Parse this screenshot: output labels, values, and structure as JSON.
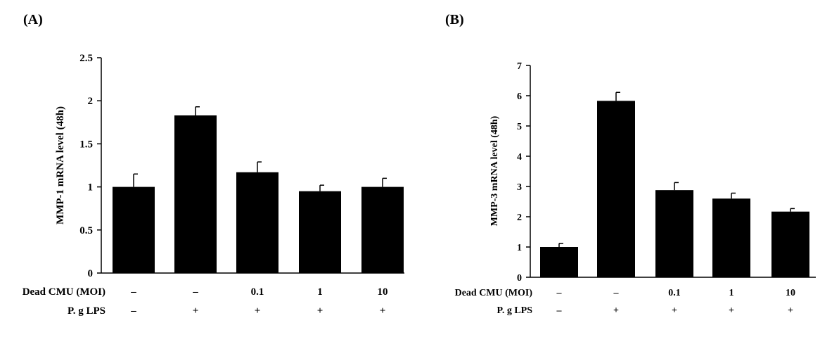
{
  "chart_data": [
    {
      "panel_label": "(A)",
      "type": "bar",
      "ylabel": "MMP-1 mRNA level (48h)",
      "ylim": [
        0,
        2.5
      ],
      "yticks": [
        "0",
        "0.5",
        "1",
        "1.5",
        "2",
        "2.5"
      ],
      "values": [
        1.0,
        1.83,
        1.17,
        0.95,
        1.0
      ],
      "errors": [
        0.15,
        0.1,
        0.12,
        0.07,
        0.1
      ],
      "rows": [
        {
          "label": "Dead CMU (MOI)",
          "cells": [
            "–",
            "–",
            "0.1",
            "1",
            "10"
          ]
        },
        {
          "label": "P. g LPS",
          "cells": [
            "–",
            "+",
            "+",
            "+",
            "+"
          ]
        }
      ],
      "bar_color": "#000000"
    },
    {
      "panel_label": "(B)",
      "type": "bar",
      "ylabel": "MMP-3 mRNA level (48h)",
      "ylim": [
        0,
        7
      ],
      "yticks": [
        "0",
        "1",
        "2",
        "3",
        "4",
        "5",
        "6",
        "7"
      ],
      "values": [
        1.0,
        5.83,
        2.88,
        2.6,
        2.17
      ],
      "errors": [
        0.12,
        0.28,
        0.25,
        0.18,
        0.1
      ],
      "rows": [
        {
          "label": "Dead CMU (MOI)",
          "cells": [
            "–",
            "–",
            "0.1",
            "1",
            "10"
          ]
        },
        {
          "label": "P. g LPS",
          "cells": [
            "–",
            "+",
            "+",
            "+",
            "+"
          ]
        }
      ],
      "bar_color": "#000000"
    }
  ]
}
